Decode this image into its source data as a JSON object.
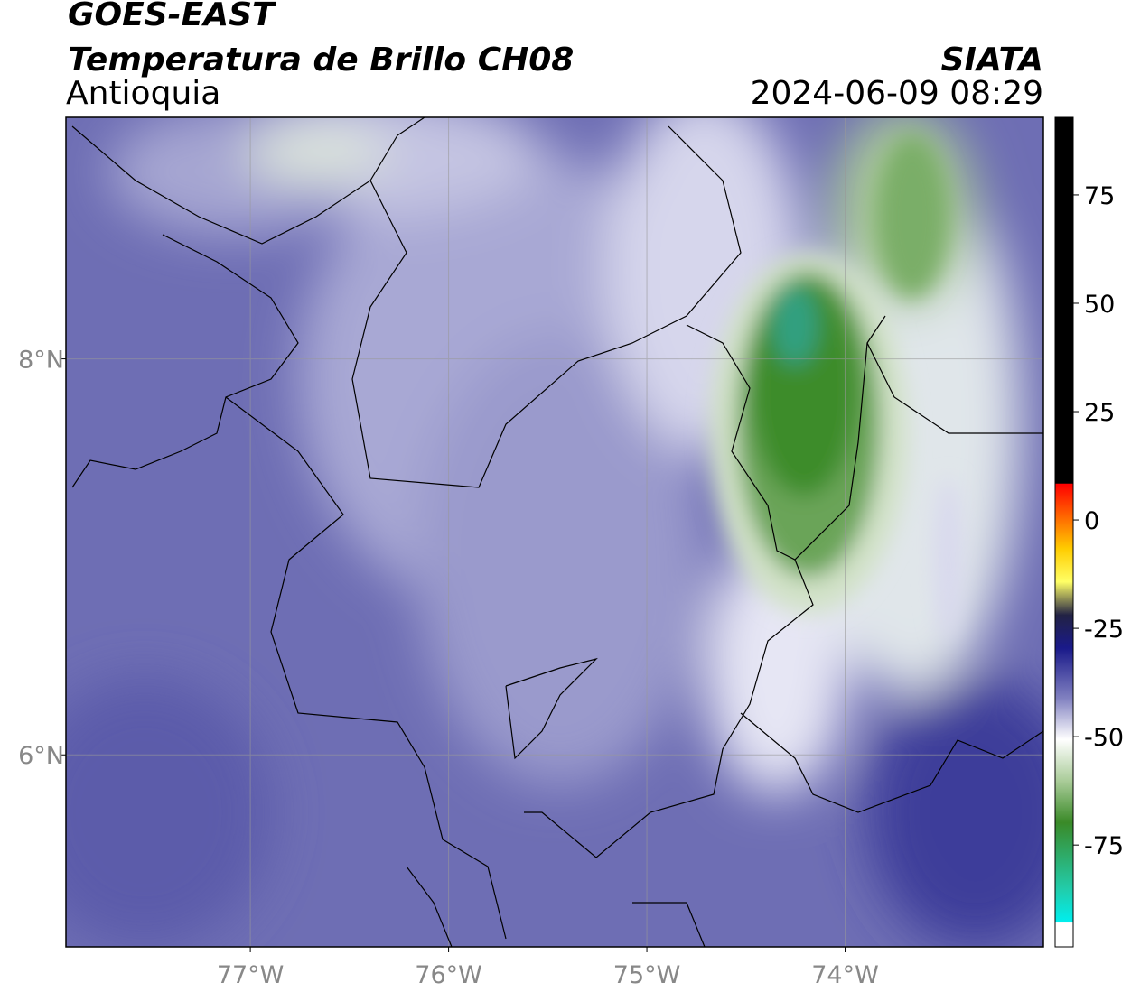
{
  "header": {
    "title": "GOES-EAST",
    "subtitle": "Temperatura de Brillo CH08",
    "region": "Antioquia",
    "source": "SIATA",
    "timestamp": "2024-06-09 08:29"
  },
  "map": {
    "xlim": [
      -77.93,
      -73.0
    ],
    "ylim": [
      5.03,
      9.22
    ],
    "xticks": [
      {
        "value": -77,
        "label": "77°W"
      },
      {
        "value": -76,
        "label": "76°W"
      },
      {
        "value": -75,
        "label": "75°W"
      },
      {
        "value": -74,
        "label": "74°W"
      }
    ],
    "yticks": [
      {
        "value": 8,
        "label": "8°N"
      },
      {
        "value": 6,
        "label": "6°N"
      }
    ]
  },
  "colorbar": {
    "lim": [
      -98.5,
      92.9
    ],
    "ticks": [
      75,
      50,
      25,
      0,
      -25,
      -50,
      -75
    ]
  }
}
